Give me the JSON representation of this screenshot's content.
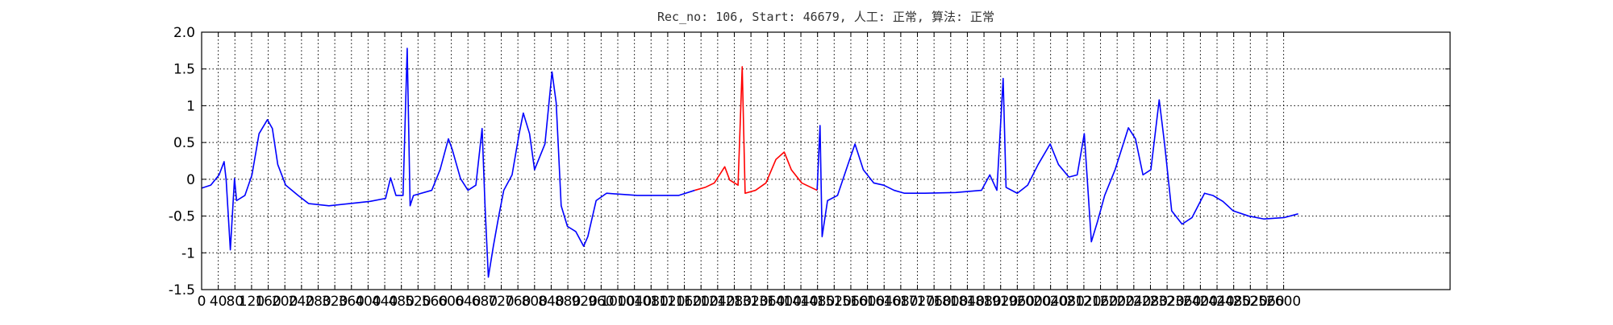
{
  "chart_data": {
    "type": "line",
    "title": "Rec_no: 106, Start: 46679, 人工: 正常, 算法: 正常",
    "xlim": [
      0,
      3000
    ],
    "ylim": [
      -1.5,
      2.0
    ],
    "xticks": [
      0,
      40,
      80,
      120,
      160,
      200,
      240,
      280,
      320,
      360,
      400,
      440,
      480,
      520,
      560,
      600,
      640,
      680,
      720,
      760,
      800,
      840,
      880,
      920,
      960,
      1000,
      1040,
      1080,
      1120,
      1160,
      1200,
      1240,
      1280,
      1320,
      1360,
      1400,
      1440,
      1480,
      1520,
      1560,
      1600,
      1640,
      1680,
      1720,
      1760,
      1800,
      1840,
      1880,
      1920,
      1960,
      2000,
      2040,
      2080,
      2120,
      2160,
      2200,
      2240,
      2280,
      2320,
      2360,
      2400,
      2440,
      2480,
      2520,
      2560,
      2600
    ],
    "yticks": [
      -1.5,
      -1.0,
      -0.5,
      0.0,
      0.5,
      1.0,
      1.5,
      {
        "value": 2.0,
        "label": "2.0"
      }
    ],
    "grid": true,
    "x": [
      0,
      22,
      42,
      54,
      59,
      69,
      79,
      84,
      104,
      121,
      138,
      158,
      170,
      183,
      202,
      232,
      257,
      306,
      356,
      405,
      442,
      454,
      467,
      484,
      494,
      501,
      509,
      553,
      573,
      593,
      602,
      622,
      640,
      659,
      674,
      681,
      689,
      701,
      714,
      726,
      746,
      763,
      773,
      788,
      800,
      825,
      842,
      852,
      864,
      879,
      899,
      918,
      928,
      948,
      973,
      1047,
      1146,
      1185,
      1210,
      1232,
      1257,
      1269,
      1289,
      1299,
      1306,
      1331,
      1356,
      1380,
      1400,
      1417,
      1442,
      1479,
      1486,
      1491,
      1504,
      1528,
      1553,
      1570,
      1590,
      1615,
      1639,
      1664,
      1689,
      1738,
      1812,
      1874,
      1894,
      1911,
      1926,
      1933,
      1960,
      1985,
      2010,
      2039,
      2059,
      2084,
      2104,
      2121,
      2138,
      2153,
      2170,
      2195,
      2227,
      2244,
      2262,
      2281,
      2301,
      2314,
      2331,
      2356,
      2380,
      2410,
      2430,
      2454,
      2479,
      2516,
      2553,
      2602,
      2635
    ],
    "series": [
      {
        "color": "#0000ff",
        "values": [
          -0.12,
          -0.08,
          0.06,
          0.24,
          -0.01,
          -0.96,
          0.01,
          -0.29,
          -0.22,
          0.06,
          0.62,
          0.81,
          0.69,
          0.2,
          -0.08,
          -0.22,
          -0.33,
          -0.36,
          -0.33,
          -0.3,
          -0.26,
          0.02,
          -0.22,
          -0.22,
          1.78,
          -0.36,
          -0.22,
          -0.15,
          0.13,
          0.55,
          0.41,
          0.01,
          -0.15,
          -0.08,
          0.69,
          -0.36,
          -1.33,
          -0.91,
          -0.5,
          -0.15,
          0.06,
          0.62,
          0.9,
          0.62,
          0.13,
          0.48,
          1.46,
          1.04,
          -0.36,
          -0.64,
          -0.71,
          -0.91,
          -0.78,
          -0.29,
          -0.19,
          -0.22,
          -0.22,
          -0.15,
          null,
          null,
          null,
          null,
          null,
          null,
          null,
          null,
          null,
          null,
          null,
          null,
          null,
          -0.15,
          0.73,
          -0.78,
          -0.29,
          -0.22,
          0.2,
          0.48,
          0.13,
          -0.05,
          -0.08,
          -0.15,
          -0.19,
          -0.19,
          -0.18,
          -0.15,
          0.06,
          -0.15,
          1.37,
          -0.11,
          -0.19,
          -0.08,
          0.2,
          0.48,
          0.2,
          0.03,
          0.06,
          0.62,
          -0.85,
          -0.57,
          -0.22,
          0.13,
          0.7,
          0.55,
          0.06,
          0.13,
          1.08,
          0.48,
          -0.43,
          -0.61,
          -0.52,
          -0.19,
          -0.22,
          -0.3,
          -0.43,
          -0.5,
          -0.54,
          -0.52,
          -0.47
        ]
      },
      {
        "color": "#ff0000",
        "values": [
          null,
          null,
          null,
          null,
          null,
          null,
          null,
          null,
          null,
          null,
          null,
          null,
          null,
          null,
          null,
          null,
          null,
          null,
          null,
          null,
          null,
          null,
          null,
          null,
          null,
          null,
          null,
          null,
          null,
          null,
          null,
          null,
          null,
          null,
          null,
          null,
          null,
          null,
          null,
          null,
          null,
          null,
          null,
          null,
          null,
          null,
          null,
          null,
          null,
          null,
          null,
          null,
          null,
          null,
          null,
          null,
          null,
          -0.15,
          -0.11,
          -0.05,
          0.17,
          -0.01,
          -0.08,
          1.53,
          -0.19,
          -0.15,
          -0.05,
          0.27,
          0.37,
          0.13,
          -0.05,
          -0.15,
          null,
          null,
          null,
          null,
          null,
          null,
          null,
          null,
          null,
          null,
          null,
          null,
          null,
          null,
          null,
          null,
          null,
          null,
          null,
          null,
          null,
          null,
          null,
          null,
          null,
          null,
          null,
          null,
          null,
          null,
          null,
          null,
          null,
          null,
          null,
          null,
          null,
          null,
          null,
          null,
          null,
          null,
          null,
          null,
          null,
          null,
          null
        ]
      }
    ]
  }
}
